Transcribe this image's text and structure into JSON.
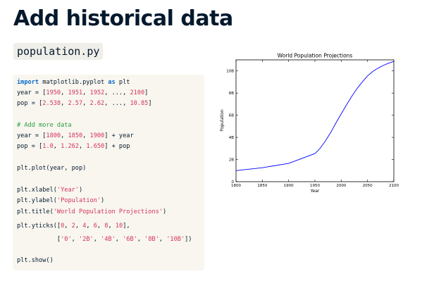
{
  "slide": {
    "title": "Add historical data",
    "filename": "population.py"
  },
  "code": {
    "l1": {
      "kw1": "import",
      "mid": " matplotlib.pyplot ",
      "kw2": "as",
      "rest": " plt"
    },
    "l2": {
      "pre": "year = [",
      "n1": "1950",
      "c1": ", ",
      "n2": "1951",
      "c2": ", ",
      "n3": "1952",
      "c3": ", ..., ",
      "n4": "2100",
      "post": "]"
    },
    "l3": {
      "pre": "pop = [",
      "n1": "2.538",
      "c1": ", ",
      "n2": "2.57",
      "c2": ", ",
      "n3": "2.62",
      "c3": ", ..., ",
      "n4": "10.85",
      "post": "]"
    },
    "l4": {
      "comment": "# Add more data"
    },
    "l5": {
      "pre": "year = [",
      "n1": "1800",
      "c1": ", ",
      "n2": "1850",
      "c2": ", ",
      "n3": "1900",
      "post": "] + year"
    },
    "l6": {
      "pre": "pop = [",
      "n1": "1.0",
      "c1": ", ",
      "n2": "1.262",
      "c2": ", ",
      "n3": "1.650",
      "post": "] + pop"
    },
    "l7": {
      "text": "plt.plot(year, pop)"
    },
    "l8": {
      "pre": "plt.xlabel(",
      "s1": "'Year'",
      "post": ")"
    },
    "l9": {
      "pre": "plt.ylabel(",
      "s1": "'Population'",
      "post": ")"
    },
    "l10": {
      "pre": "plt.title(",
      "s1": "'World Population Projections'",
      "post": ")"
    },
    "l11": {
      "pre": "plt.yticks([",
      "n1": "0",
      "c1": ", ",
      "n2": "2",
      "c2": ", ",
      "n3": "4",
      "c3": ", ",
      "n4": "6",
      "c4": ", ",
      "n5": "8",
      "c5": ", ",
      "n6": "10",
      "post": "],"
    },
    "l12": {
      "pre": "           [",
      "s1": "'0'",
      "c1": ", ",
      "s2": "'2B'",
      "c2": ", ",
      "s3": "'4B'",
      "c3": ", ",
      "s4": "'6B'",
      "c4": ", ",
      "s5": "'8B'",
      "c5": ", ",
      "s6": "'10B'",
      "post": "])"
    },
    "l13": {
      "text": "plt.show()"
    }
  },
  "chart_data": {
    "type": "line",
    "title": "World Population Projections",
    "xlabel": "Year",
    "ylabel": "Population",
    "xlim": [
      1800,
      2100
    ],
    "ylim": [
      0,
      11
    ],
    "x_ticks": [
      1800,
      1850,
      1900,
      1950,
      2000,
      2050,
      2100
    ],
    "y_ticks": [
      0,
      2,
      4,
      6,
      8,
      10
    ],
    "y_tick_labels": [
      "0",
      "2B",
      "4B",
      "6B",
      "8B",
      "10B"
    ],
    "grid": false,
    "line_color": "#0000ff",
    "series": [
      {
        "x": [
          1800,
          1850,
          1900,
          1950,
          1955,
          1960,
          1970,
          1980,
          1990,
          2000,
          2010,
          2020,
          2030,
          2040,
          2050,
          2060,
          2070,
          2080,
          2090,
          2100
        ],
        "values": [
          1.0,
          1.262,
          1.65,
          2.538,
          2.77,
          3.02,
          3.68,
          4.44,
          5.31,
          6.13,
          6.93,
          7.7,
          8.4,
          9.0,
          9.55,
          9.95,
          10.25,
          10.5,
          10.7,
          10.85
        ]
      }
    ]
  }
}
